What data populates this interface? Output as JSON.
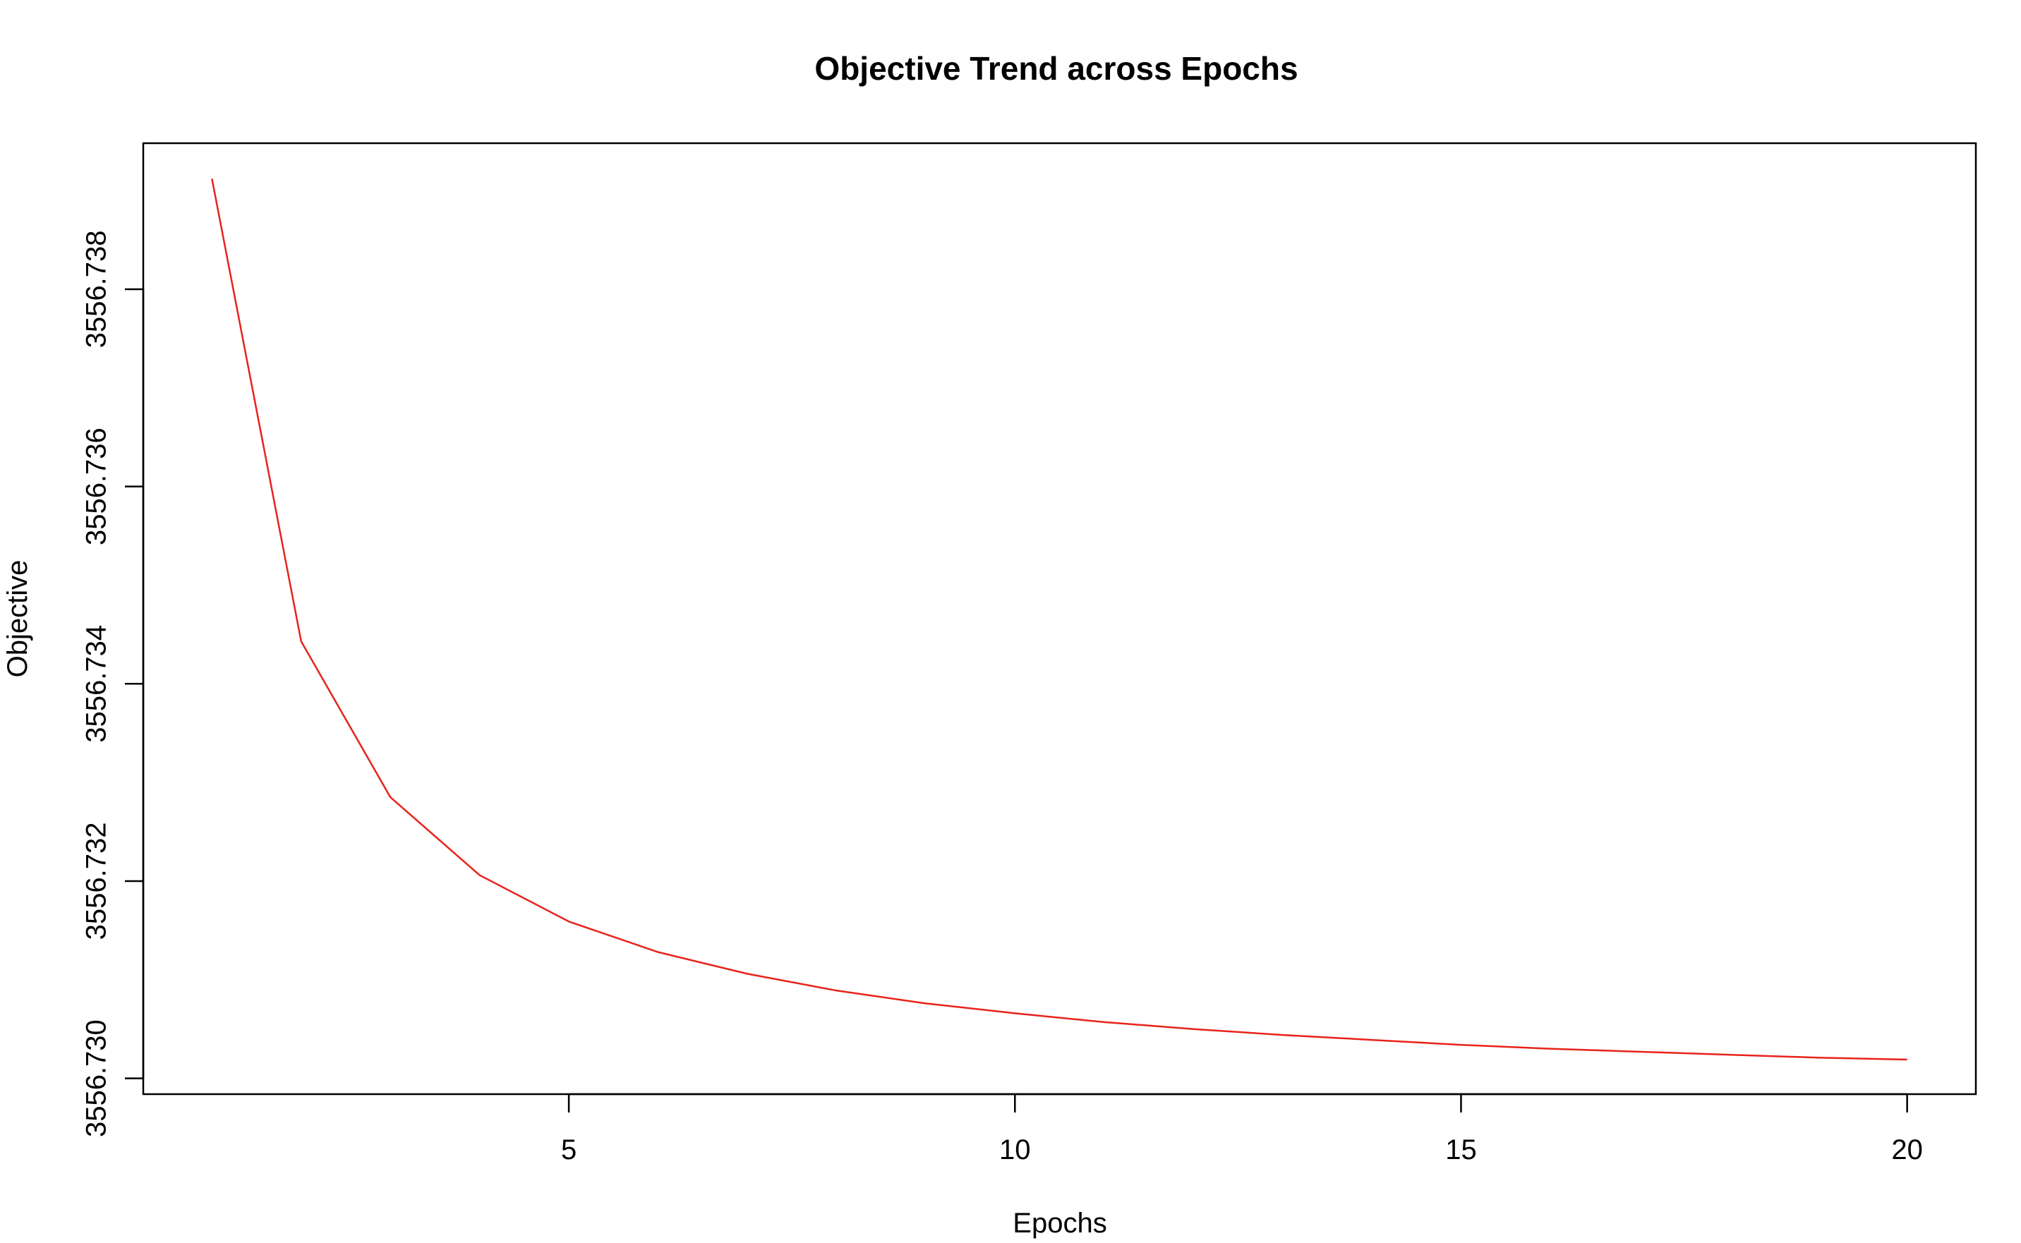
{
  "chart_data": {
    "type": "line",
    "title": "Objective Trend across Epochs",
    "xlabel": "Epochs",
    "ylabel": "Objective",
    "x": [
      1,
      2,
      3,
      4,
      5,
      6,
      7,
      8,
      9,
      10,
      11,
      12,
      13,
      14,
      15,
      16,
      17,
      18,
      19,
      20
    ],
    "series": [
      {
        "values": [
          3556.73912,
          3556.73443,
          3556.73285,
          3556.73206,
          3556.73159,
          3556.73128,
          3556.73106,
          3556.73089,
          3556.73076,
          3556.73066,
          3556.73057,
          3556.7305,
          3556.73044,
          3556.73039,
          3556.73034,
          3556.7303,
          3556.73027,
          3556.73024,
          3556.73021,
          3556.73019
        ],
        "color": "#e8231b"
      }
    ],
    "xlim": [
      0.23,
      20.77
    ],
    "ylim": [
      3556.72984,
      3556.73948
    ],
    "xticks": [
      5,
      10,
      15,
      20
    ],
    "xtick_labels": [
      "5",
      "10",
      "15",
      "20"
    ],
    "yticks": [
      3556.73,
      3556.732,
      3556.734,
      3556.736,
      3556.738
    ],
    "ytick_labels": [
      "3556.730",
      "3556.732",
      "3556.734",
      "3556.736",
      "3556.738"
    ],
    "grid": false,
    "legend": "none",
    "box": true
  }
}
